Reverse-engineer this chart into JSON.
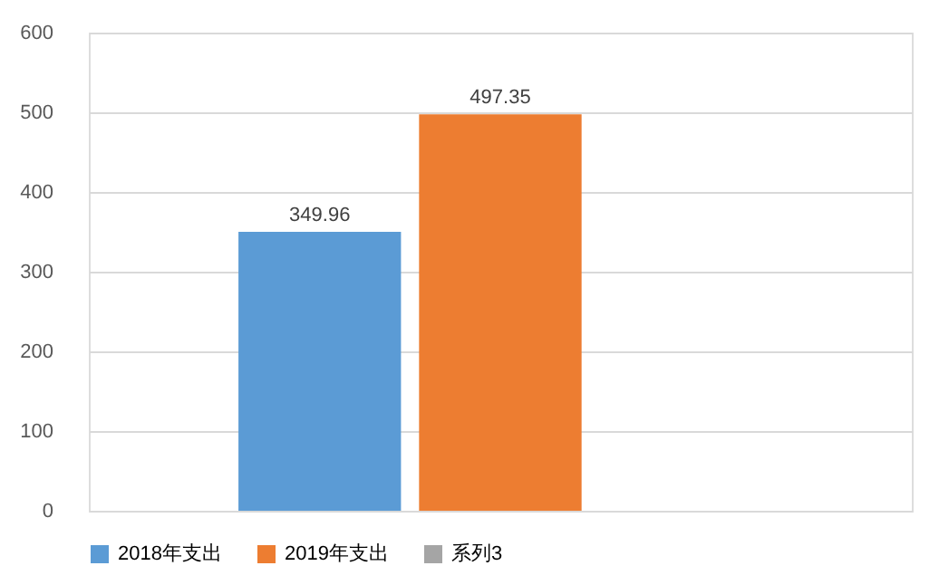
{
  "chart_data": {
    "type": "bar",
    "categories": [
      null
    ],
    "series": [
      {
        "name": "2018年支出",
        "color": "#5b9bd5",
        "values": [
          349.96
        ]
      },
      {
        "name": "2019年支出",
        "color": "#ed7d31",
        "values": [
          497.35
        ]
      },
      {
        "name": "系列3",
        "color": "#a5a5a5",
        "values": [
          null
        ]
      }
    ],
    "ylim": [
      0,
      600
    ],
    "yticks": [
      0,
      100,
      200,
      300,
      400,
      500,
      600
    ],
    "grid": "y",
    "legend": "bottom",
    "data_labels": true,
    "tick_labels": "y"
  }
}
